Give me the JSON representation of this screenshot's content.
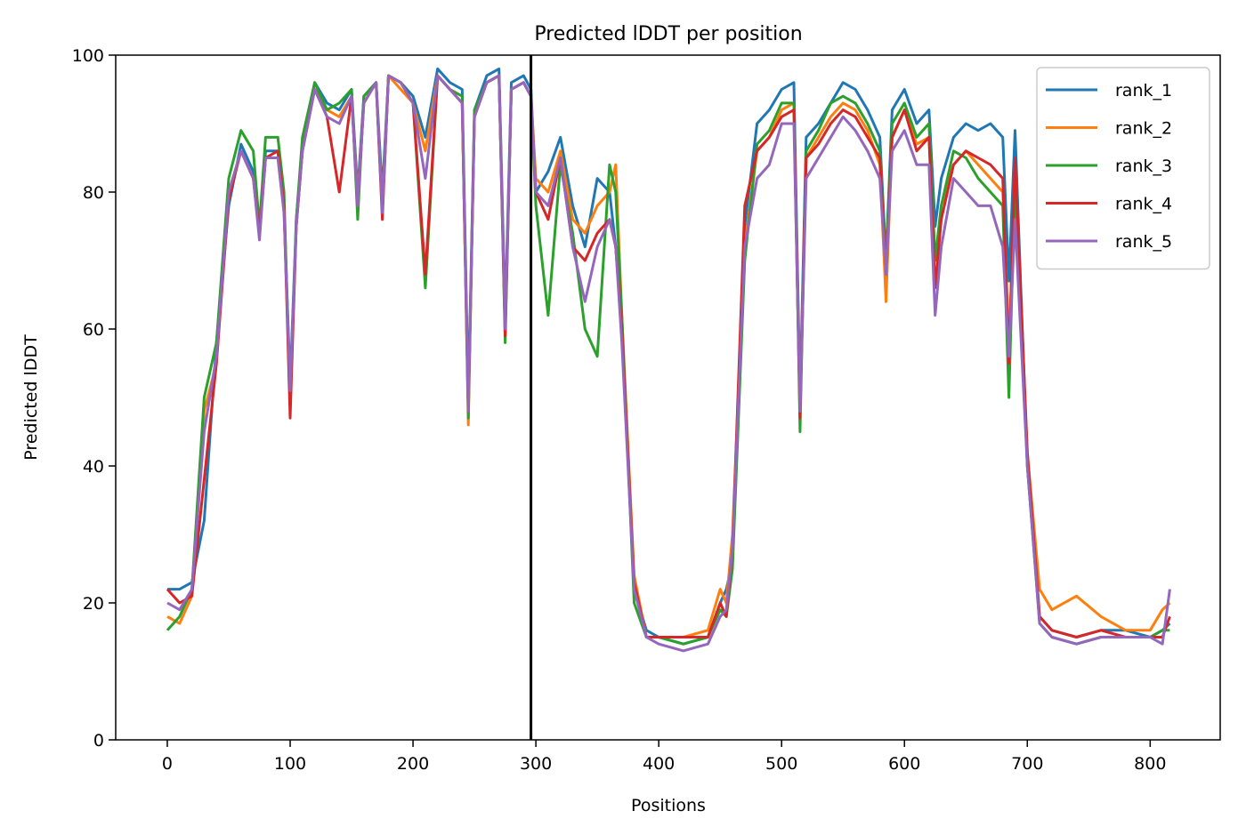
{
  "chart_data": {
    "type": "line",
    "title": "Predicted lDDT per position",
    "xlabel": "Positions",
    "ylabel": "Predicted lDDT",
    "xlim": [
      -42,
      857
    ],
    "ylim": [
      0,
      100
    ],
    "xticks": [
      0,
      100,
      200,
      300,
      400,
      500,
      600,
      700,
      800
    ],
    "yticks": [
      0,
      20,
      40,
      60,
      80,
      100
    ],
    "grid": false,
    "legend_position": "top-right",
    "vline": {
      "x": 296,
      "color": "#000000"
    },
    "x": [
      0,
      10,
      20,
      30,
      40,
      50,
      60,
      70,
      75,
      80,
      90,
      95,
      100,
      105,
      110,
      120,
      130,
      140,
      150,
      155,
      160,
      170,
      175,
      180,
      190,
      200,
      210,
      220,
      230,
      240,
      245,
      250,
      260,
      270,
      275,
      280,
      290,
      296,
      300,
      310,
      320,
      330,
      340,
      350,
      360,
      365,
      370,
      380,
      390,
      400,
      420,
      440,
      450,
      455,
      460,
      470,
      480,
      490,
      500,
      510,
      515,
      520,
      530,
      540,
      550,
      560,
      570,
      580,
      585,
      590,
      600,
      610,
      620,
      625,
      630,
      640,
      650,
      660,
      670,
      680,
      685,
      690,
      700,
      710,
      720,
      740,
      760,
      780,
      800,
      810,
      816
    ],
    "series": [
      {
        "name": "rank_1",
        "color": "#1f77b4",
        "values": [
          22,
          22,
          23,
          32,
          58,
          78,
          87,
          83,
          74,
          86,
          86,
          78,
          52,
          76,
          87,
          96,
          93,
          92,
          95,
          80,
          94,
          96,
          80,
          97,
          96,
          94,
          88,
          98,
          96,
          95,
          50,
          92,
          97,
          98,
          62,
          96,
          97,
          95,
          80,
          83,
          88,
          78,
          72,
          82,
          80,
          72,
          60,
          22,
          16,
          15,
          14,
          15,
          20,
          22,
          26,
          75,
          90,
          92,
          95,
          96,
          50,
          88,
          90,
          93,
          96,
          95,
          92,
          88,
          70,
          92,
          95,
          90,
          92,
          75,
          82,
          88,
          90,
          89,
          90,
          88,
          67,
          89,
          40,
          18,
          16,
          15,
          16,
          16,
          15,
          16,
          17
        ]
      },
      {
        "name": "rank_2",
        "color": "#ff7f0e",
        "values": [
          18,
          17,
          21,
          48,
          55,
          80,
          86,
          82,
          74,
          85,
          85,
          77,
          50,
          75,
          86,
          95,
          92,
          91,
          94,
          79,
          93,
          96,
          78,
          97,
          95,
          93,
          86,
          97,
          95,
          93,
          46,
          91,
          96,
          97,
          60,
          95,
          96,
          94,
          82,
          80,
          86,
          76,
          74,
          78,
          80,
          84,
          62,
          24,
          15,
          15,
          15,
          16,
          22,
          20,
          30,
          72,
          86,
          88,
          92,
          93,
          48,
          85,
          88,
          91,
          93,
          92,
          89,
          84,
          64,
          88,
          92,
          87,
          88,
          70,
          78,
          84,
          86,
          84,
          82,
          80,
          58,
          80,
          42,
          22,
          19,
          21,
          18,
          16,
          16,
          19,
          20
        ]
      },
      {
        "name": "rank_3",
        "color": "#2ca02c",
        "values": [
          16,
          18,
          22,
          50,
          58,
          82,
          89,
          86,
          75,
          88,
          88,
          80,
          49,
          76,
          88,
          96,
          92,
          93,
          95,
          76,
          94,
          96,
          77,
          97,
          96,
          93,
          66,
          97,
          95,
          94,
          47,
          92,
          96,
          97,
          58,
          95,
          96,
          94,
          78,
          62,
          84,
          74,
          60,
          56,
          84,
          80,
          62,
          20,
          15,
          15,
          14,
          15,
          19,
          18,
          25,
          70,
          87,
          89,
          93,
          93,
          45,
          86,
          89,
          93,
          94,
          93,
          90,
          86,
          70,
          90,
          93,
          88,
          90,
          70,
          78,
          86,
          85,
          82,
          80,
          78,
          50,
          82,
          40,
          17,
          15,
          14,
          15,
          15,
          15,
          16,
          16
        ]
      },
      {
        "name": "rank_4",
        "color": "#d62728",
        "values": [
          22,
          20,
          21,
          38,
          55,
          79,
          86,
          82,
          74,
          85,
          86,
          78,
          47,
          75,
          86,
          95,
          91,
          80,
          94,
          78,
          93,
          96,
          76,
          97,
          96,
          93,
          68,
          97,
          95,
          93,
          48,
          91,
          96,
          97,
          59,
          95,
          96,
          94,
          80,
          76,
          85,
          72,
          70,
          74,
          76,
          72,
          60,
          23,
          15,
          15,
          15,
          15,
          20,
          18,
          28,
          78,
          86,
          88,
          91,
          92,
          47,
          85,
          87,
          90,
          92,
          91,
          88,
          85,
          68,
          88,
          92,
          86,
          88,
          66,
          76,
          84,
          86,
          85,
          84,
          82,
          55,
          85,
          42,
          18,
          16,
          15,
          16,
          15,
          15,
          15,
          18
        ]
      },
      {
        "name": "rank_5",
        "color": "#9467bd",
        "values": [
          20,
          19,
          22,
          45,
          56,
          80,
          86,
          82,
          73,
          85,
          85,
          77,
          51,
          75,
          86,
          95,
          91,
          90,
          94,
          78,
          93,
          96,
          77,
          97,
          96,
          93,
          82,
          97,
          95,
          93,
          48,
          91,
          96,
          97,
          60,
          95,
          96,
          94,
          80,
          78,
          85,
          72,
          64,
          72,
          76,
          72,
          58,
          22,
          15,
          14,
          13,
          14,
          18,
          19,
          28,
          72,
          82,
          84,
          90,
          90,
          48,
          82,
          85,
          88,
          91,
          89,
          86,
          82,
          68,
          86,
          89,
          84,
          84,
          62,
          72,
          82,
          80,
          78,
          78,
          72,
          56,
          76,
          40,
          17,
          15,
          14,
          15,
          15,
          15,
          14,
          22
        ]
      }
    ]
  }
}
